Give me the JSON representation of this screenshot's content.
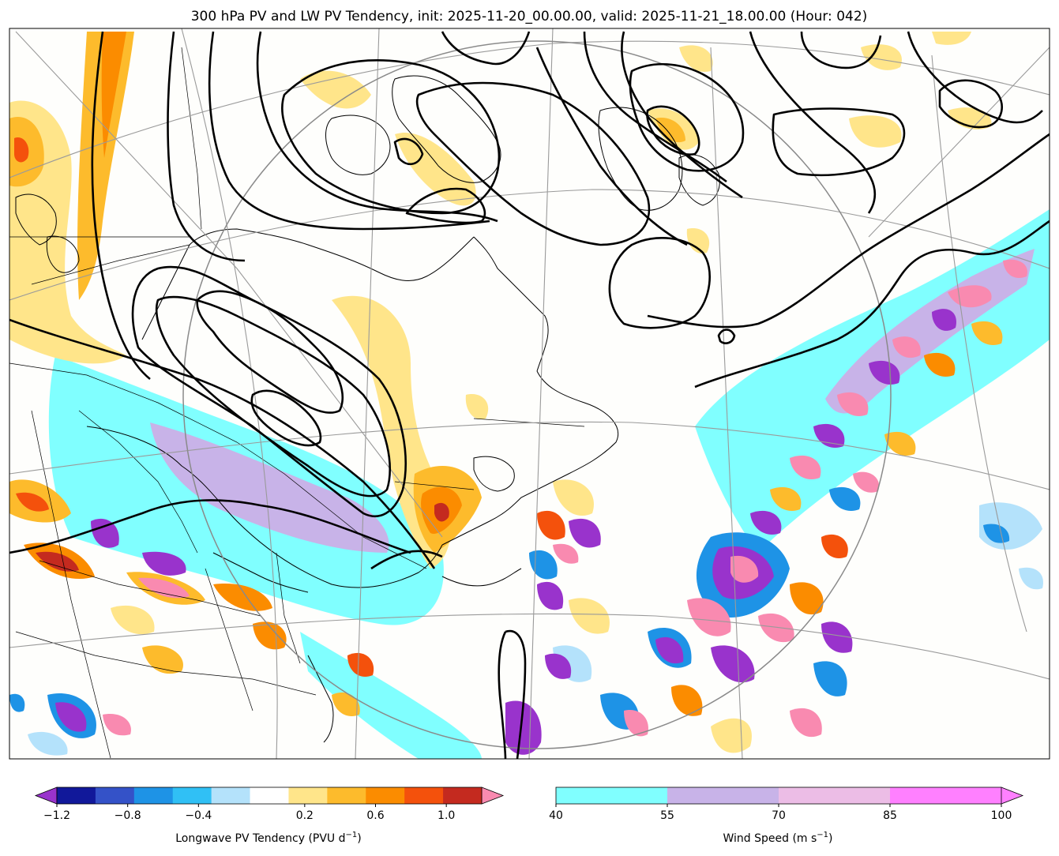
{
  "chart_data": {
    "type": "contour-map",
    "title": "300 hPa PV and LW PV Tendency, init: 2025-11-20_00.00.00, valid: 2025-11-21_18.00.00 (Hour: 042)",
    "map_region": "Eastern North America / North Atlantic (polar stereographic)",
    "overlay": "300 hPa PV contours (black lines)",
    "colorbars": [
      {
        "name": "pv_tendency",
        "label": "Longwave PV Tendency (PVU d",
        "label_exponent": "−1",
        "label_suffix": ")",
        "levels": [
          -1.2,
          -1.0,
          -0.8,
          -0.6,
          -0.4,
          -0.2,
          0.2,
          0.4,
          0.6,
          0.8,
          1.0,
          1.2
        ],
        "colors": [
          "#11189a",
          "#3452c8",
          "#1e93e6",
          "#30c0f5",
          "#b4e2fb",
          "#ffffff",
          "#ffe58a",
          "#fdbb2c",
          "#fb8c00",
          "#f4510c",
          "#c42a1f"
        ],
        "under_color": "#9933cc",
        "over_color": "#f98ab0",
        "extend": "both",
        "tick_labels": [
          "−1.2",
          "−0.8",
          "−0.4",
          "0.2",
          "0.6",
          "1.0"
        ],
        "tick_values": [
          -1.2,
          -0.8,
          -0.4,
          0.2,
          0.6,
          1.0
        ]
      },
      {
        "name": "wind_speed",
        "label": "Wind Speed (m s",
        "label_exponent": "−1",
        "label_suffix": ")",
        "levels": [
          40,
          55,
          70,
          85,
          100
        ],
        "colors": [
          "#80ffff",
          "#c8b3e8",
          "#ecbde6",
          "#ff80ff"
        ],
        "extend": "max",
        "over_color": "#ff80ff",
        "tick_labels": [
          "40",
          "55",
          "70",
          "85",
          "100"
        ],
        "tick_values": [
          40,
          55,
          70,
          85,
          100
        ]
      }
    ]
  }
}
